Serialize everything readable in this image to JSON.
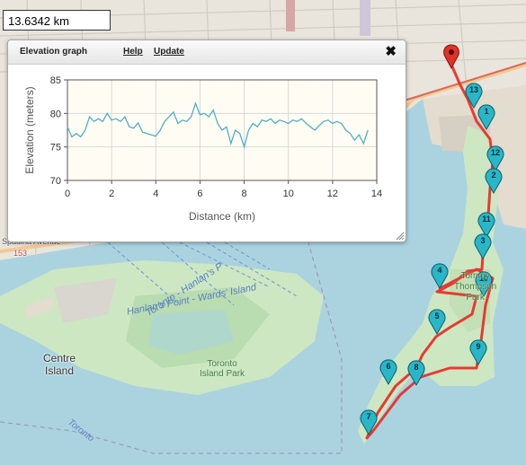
{
  "distance": {
    "text": "13.6342 km"
  },
  "panel": {
    "title": "Elevation graph",
    "help_label": "Help",
    "update_label": "Update",
    "close_icon": "close-icon",
    "resize_icon": "resize-handle-icon"
  },
  "chart_data": {
    "type": "line",
    "xlabel": "Distance (km)",
    "ylabel": "Elevation (meters)",
    "xlim": [
      0,
      14
    ],
    "ylim": [
      70,
      85
    ],
    "xticks": [
      0,
      2,
      4,
      6,
      8,
      10,
      12,
      14
    ],
    "yticks": [
      70,
      75,
      80,
      85
    ],
    "grid": true,
    "color": "#4fb0c6",
    "x": [
      0.0,
      0.2,
      0.4,
      0.6,
      0.8,
      1.0,
      1.2,
      1.4,
      1.6,
      1.8,
      2.0,
      2.2,
      2.4,
      2.6,
      2.8,
      3.0,
      3.2,
      3.4,
      3.6,
      3.8,
      4.0,
      4.2,
      4.4,
      4.6,
      4.8,
      5.0,
      5.2,
      5.4,
      5.6,
      5.8,
      6.0,
      6.2,
      6.4,
      6.6,
      6.8,
      7.0,
      7.2,
      7.4,
      7.6,
      7.8,
      8.0,
      8.2,
      8.4,
      8.6,
      8.8,
      9.0,
      9.2,
      9.4,
      9.6,
      9.8,
      10.0,
      10.2,
      10.4,
      10.6,
      10.8,
      11.0,
      11.2,
      11.4,
      11.6,
      11.8,
      12.0,
      12.2,
      12.4,
      12.6,
      12.8,
      13.0,
      13.2,
      13.4,
      13.6
    ],
    "values": [
      78.0,
      76.5,
      77.0,
      76.5,
      77.5,
      79.5,
      78.8,
      79.2,
      78.8,
      80.0,
      79.0,
      79.2,
      78.8,
      79.5,
      78.0,
      77.8,
      78.6,
      77.2,
      77.0,
      76.8,
      76.6,
      77.5,
      78.8,
      79.5,
      80.2,
      78.5,
      79.0,
      78.8,
      79.5,
      81.5,
      79.8,
      80.0,
      79.5,
      80.5,
      78.5,
      77.5,
      78.0,
      75.5,
      77.5,
      77.0,
      75.0,
      77.5,
      78.5,
      78.0,
      79.0,
      78.8,
      79.2,
      78.5,
      79.0,
      78.8,
      78.5,
      79.0,
      78.8,
      79.2,
      78.5,
      78.0,
      77.5,
      78.2,
      78.8,
      79.0,
      78.5,
      78.8,
      78.5,
      77.5,
      77.0,
      76.0,
      76.8,
      75.5,
      77.5
    ]
  },
  "map": {
    "labels": {
      "centre_island": "Centre\nIsland",
      "toronto_island_park": "Toronto\nIsland Park",
      "hanlans_ferry": "Hanlan's Point - Wards' Island",
      "toronto_hanlans": "Toronto - Hanlan's P",
      "toronto_edge": "Toronto",
      "thompson_park": "Tommy\nThompson\nPark",
      "street_fragment": "Spadina Avenue",
      "street_number": "153"
    },
    "waypoints": [
      "13",
      "1",
      "12",
      "2",
      "11",
      "3",
      "4",
      "10",
      "5",
      "9",
      "6",
      "8",
      "7"
    ],
    "route_color": "#e8302a",
    "marker_color": "#29b6c9"
  }
}
